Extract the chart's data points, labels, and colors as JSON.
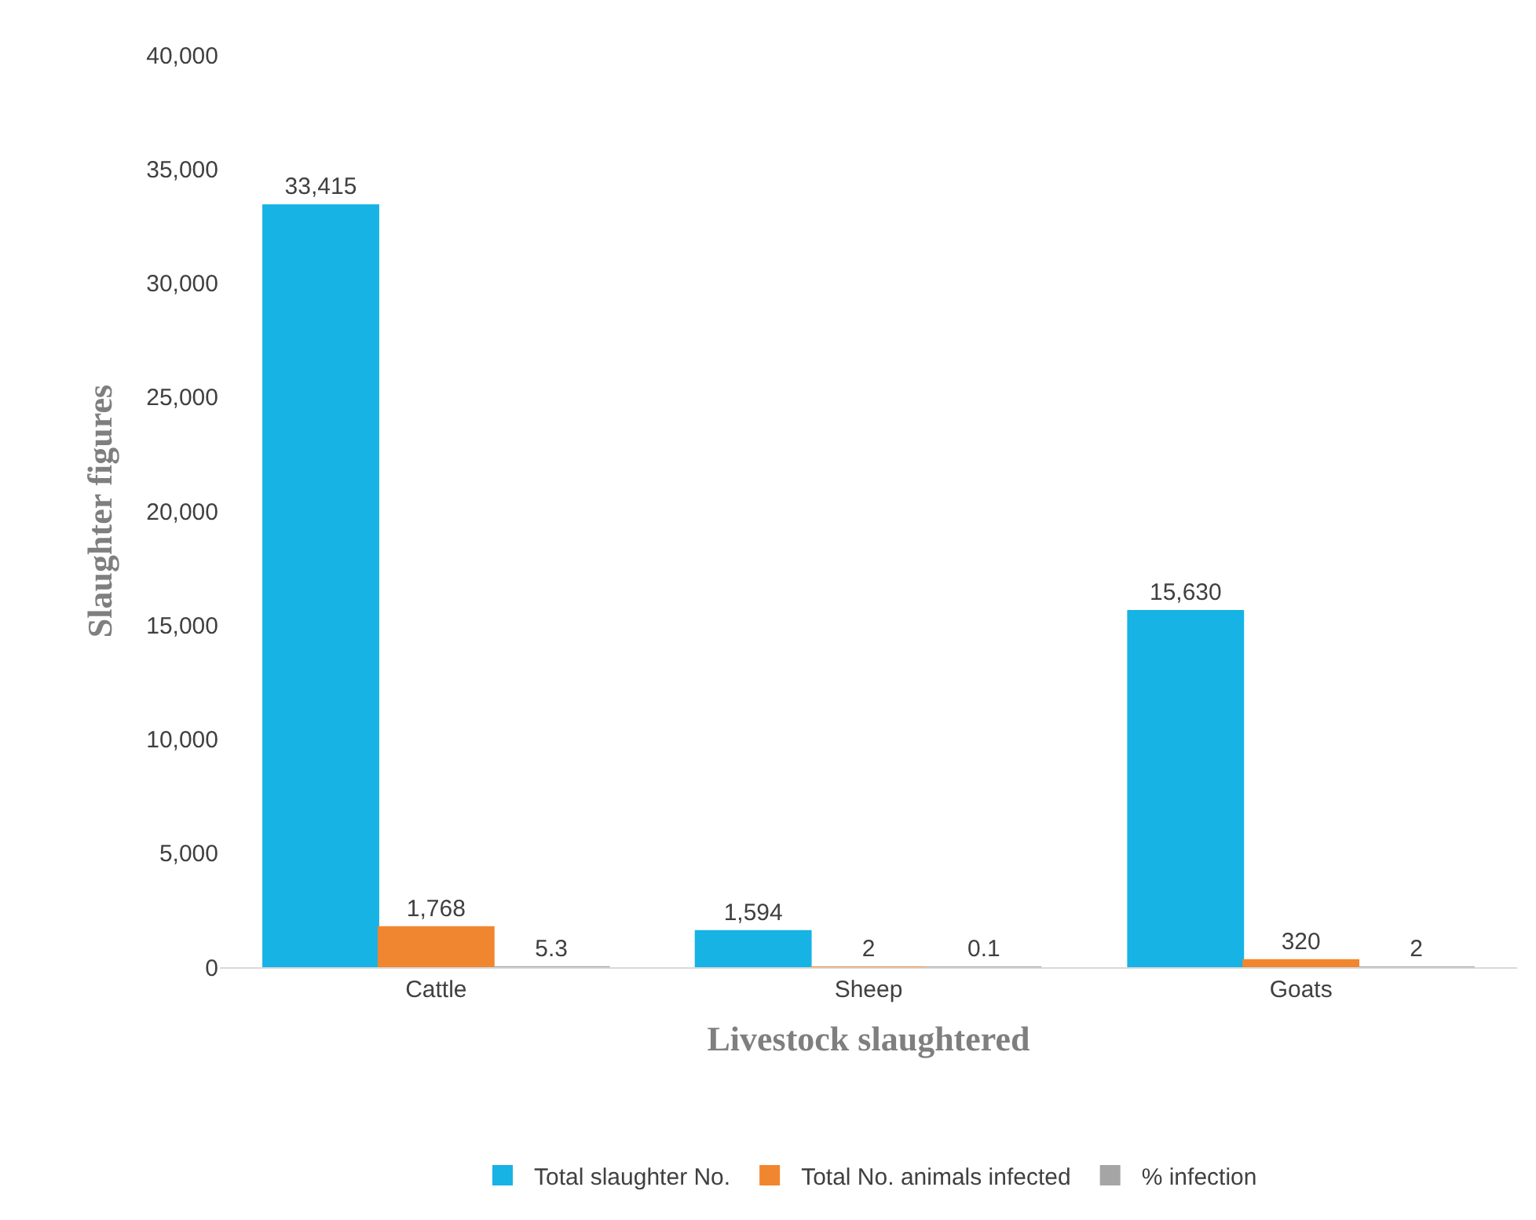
{
  "chart_data": {
    "type": "bar",
    "xlabel": "Livestock slaughtered",
    "ylabel": "Slaughter figures",
    "categories": [
      "Cattle",
      "Sheep",
      "Goats"
    ],
    "series": [
      {
        "name": "Total slaughter No.",
        "color": "#16b3e4",
        "values": [
          33415,
          1594,
          15630
        ],
        "value_labels": [
          "33,415",
          "1,594",
          "15,630"
        ]
      },
      {
        "name": "Total No. animals infected",
        "color": "#f18630",
        "values": [
          1768,
          2,
          320
        ],
        "value_labels": [
          "1,768",
          "2",
          "320"
        ]
      },
      {
        "name": "% infection",
        "color": "#a5a5a5",
        "values": [
          5.3,
          0.1,
          2
        ],
        "value_labels": [
          "5.3",
          "0.1",
          "2"
        ]
      }
    ],
    "ylim": [
      0,
      40000
    ],
    "yticks": [
      0,
      {
        "value": 5000,
        "label": "5,000"
      },
      {
        "value": 10000,
        "label": "10,000"
      },
      {
        "value": 15000,
        "label": "15,000"
      },
      {
        "value": 20000,
        "label": "20,000"
      },
      {
        "value": 25000,
        "label": "25,000"
      },
      {
        "value": 30000,
        "label": "30,000"
      },
      {
        "value": 35000,
        "label": "35,000"
      },
      {
        "value": 40000,
        "label": "40,000"
      }
    ],
    "legend": "bottom"
  }
}
